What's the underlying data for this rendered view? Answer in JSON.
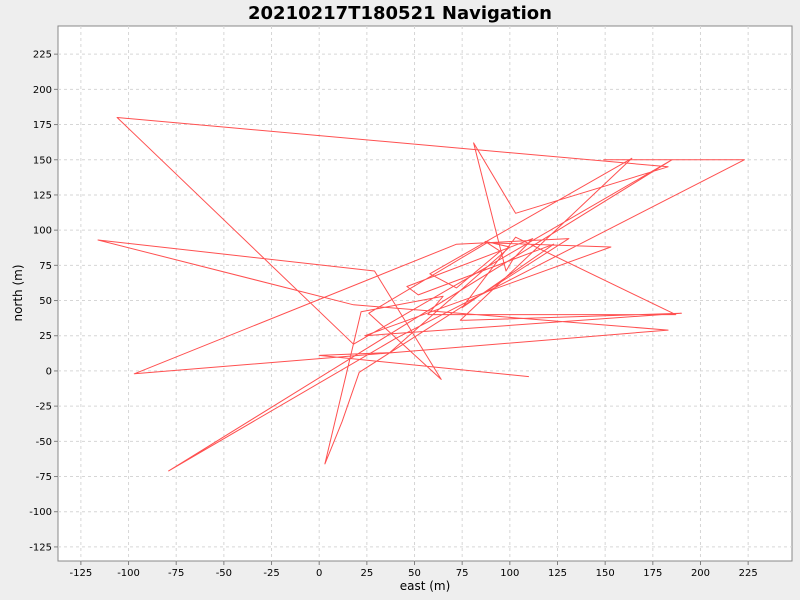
{
  "chart_data": {
    "type": "line",
    "title": "20210217T180521 Navigation",
    "xlabel": "east (m)",
    "ylabel": "north (m)",
    "xlim": [
      -137,
      248
    ],
    "ylim": [
      -135,
      245
    ],
    "xticks": [
      -125,
      -100,
      -75,
      -50,
      -25,
      0,
      25,
      50,
      75,
      100,
      125,
      150,
      175,
      200,
      225
    ],
    "yticks": [
      -125,
      -100,
      -75,
      -50,
      -25,
      0,
      25,
      50,
      75,
      100,
      125,
      150,
      175,
      200,
      225
    ],
    "grid": true,
    "line_color": "#ff5050",
    "background": "#ffffff",
    "series": [
      {
        "x": [
          149,
          223,
          40,
          -79,
          185,
          18,
          -106,
          183,
          103,
          81,
          98,
          102,
          112,
          46,
          52,
          123,
          75,
          103,
          187,
          57,
          65,
          22,
          3,
          12,
          21,
          131,
          72,
          -97,
          183,
          18,
          -116,
          29,
          64,
          26,
          88,
          153,
          24,
          190,
          77,
          74,
          164,
          58,
          72,
          95,
          87,
          100,
          37,
          0,
          110
        ],
        "y": [
          150,
          150,
          23,
          -71,
          150,
          19,
          180,
          145,
          112,
          162,
          71,
          80,
          94,
          60,
          54,
          90,
          45,
          95,
          40,
          40,
          53,
          42,
          -66,
          -36,
          -1,
          94,
          90,
          -2,
          29,
          47,
          93,
          71,
          -6,
          41,
          91,
          88,
          25,
          41,
          36,
          36,
          151,
          69,
          59,
          85,
          92,
          88,
          13,
          11,
          -4
        ]
      }
    ]
  }
}
